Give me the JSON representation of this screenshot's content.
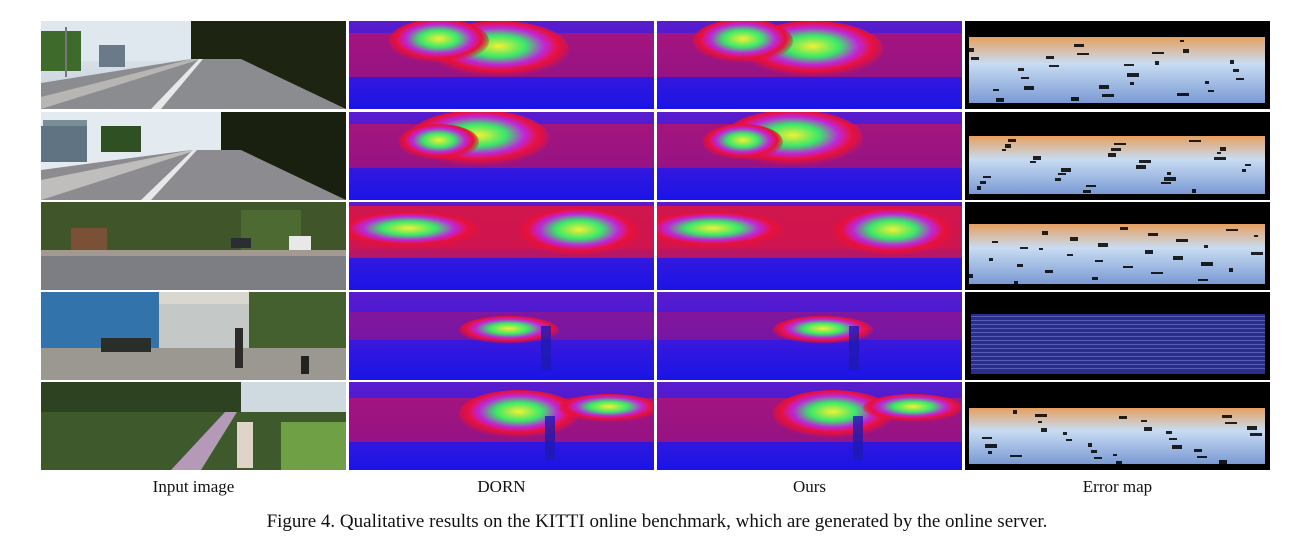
{
  "figure": {
    "columns": [
      {
        "key": "input",
        "label": "Input image"
      },
      {
        "key": "dorn",
        "label": "DORN"
      },
      {
        "key": "ours",
        "label": "Ours"
      },
      {
        "key": "error",
        "label": "Error map"
      }
    ],
    "rows": 5,
    "caption": "Figure 4. Qualitative results on the KITTI online benchmark, which are generated by the online server."
  },
  "colors": {
    "depth_far": "#1a14e6",
    "depth_mid": "#e8103a",
    "depth_near_green": "#38e86a",
    "depth_near_yellow": "#f2f034",
    "error_low": "#c8dcf2",
    "error_high": "#f2a050",
    "error_bg": "#000000"
  }
}
